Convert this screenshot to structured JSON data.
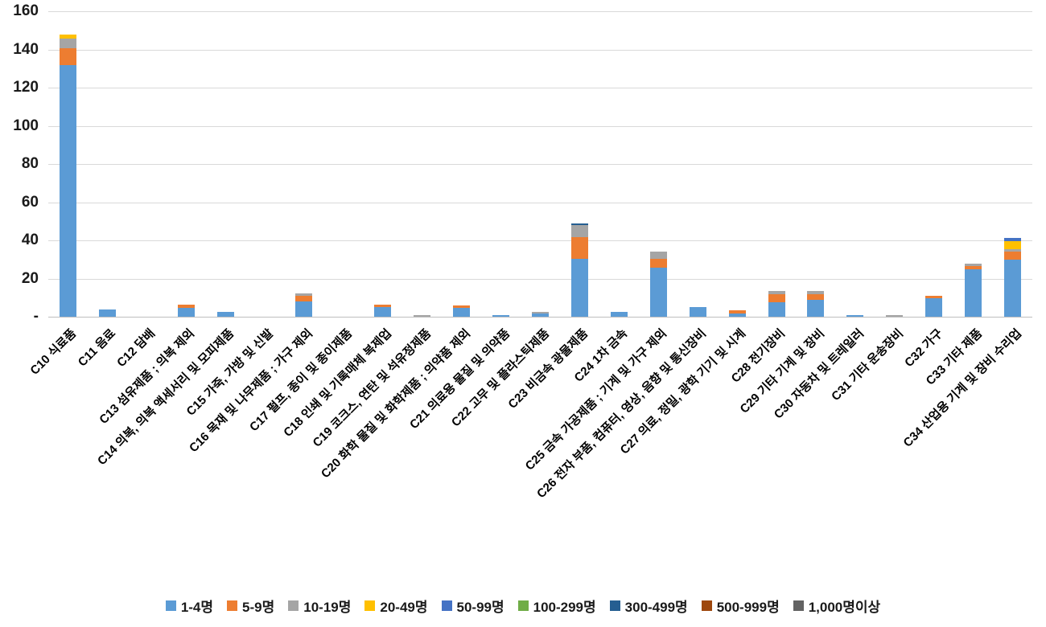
{
  "chart_data": {
    "type": "bar",
    "subtype": "stacked-vertical",
    "title": "",
    "xlabel": "",
    "ylabel": "",
    "grid": "horizontal-only",
    "legend_position": "bottom",
    "y_axis": {
      "min": 0,
      "max": 160,
      "step": 20,
      "tick_labels": [
        "160",
        "140",
        "120",
        "100",
        "80",
        "60",
        "40",
        "20",
        "-"
      ]
    },
    "categories": [
      "C10 식료품",
      "C11 음료",
      "C12 담배",
      "C13 섬유제품 ; 의복 제외",
      "C14 의복, 의복 액세서리 및 모피제품",
      "C15 가죽, 가방 및 신발",
      "C16 목재 및 나무제품 ; 가구 제외",
      "C17 펄프, 종이 및 종이제품",
      "C18 인쇄 및 기록매체 복제업",
      "C19 코크스, 연탄 및 석유정제품",
      "C20 화학 물질 및 화학제품 ; 의약품 제외",
      "C21 의료용 물질 및 의약품",
      "C22 고무 및 플라스틱제품",
      "C23 비금속 광물제품",
      "C24 1차 금속",
      "C25 금속 가공제품 ; 기계 및 가구 제외",
      "C26 전자 부품, 컴퓨터, 영상, 음향 및 통신장비",
      "C27 의료, 정밀, 광학 기기 및 시계",
      "C28 전기장비",
      "C29 기타 기계 및 장비",
      "C30 자동차 및 트레일러",
      "C31 기타 운송장비",
      "C32 가구",
      "C33 기타 제품",
      "C34 산업용 기계 및 장비 수리업"
    ],
    "series": [
      {
        "name": "1-4명",
        "color": "#5B9BD5",
        "values": [
          132,
          4,
          0,
          4.5,
          2.5,
          0,
          8,
          0,
          5,
          0,
          4.5,
          1,
          1.5,
          30.5,
          2.6,
          25.5,
          5.2,
          1.6,
          7.6,
          9,
          1,
          0,
          9.5,
          25,
          30
        ]
      },
      {
        "name": "5-9명",
        "color": "#ED7D31",
        "values": [
          8.5,
          0,
          0,
          2,
          0,
          0,
          3,
          0,
          1.5,
          0,
          1.3,
          0,
          0,
          11,
          0,
          4.8,
          0,
          1.8,
          4.2,
          3,
          0,
          0,
          1.6,
          1.5,
          4.2
        ]
      },
      {
        "name": "10-19명",
        "color": "#A5A5A5",
        "values": [
          5,
          0,
          0,
          0,
          0,
          0,
          1.3,
          0,
          0,
          1,
          0,
          0,
          1,
          6.3,
          0,
          3.7,
          0,
          0,
          1.8,
          1.5,
          0,
          1,
          0,
          1.5,
          1.2
        ]
      },
      {
        "name": "20-49명",
        "color": "#FFC000",
        "values": [
          2.5,
          0,
          0,
          0,
          0,
          0,
          0,
          0,
          0,
          0,
          0,
          0,
          0,
          0,
          0,
          0,
          0,
          0,
          0,
          0,
          0,
          0,
          0,
          0,
          4.2
        ]
      },
      {
        "name": "50-99명",
        "color": "#4472C4",
        "values": [
          0,
          0,
          0,
          0,
          0,
          0,
          0,
          0,
          0,
          0,
          0,
          0,
          0,
          0,
          0,
          0,
          0,
          0,
          0,
          0,
          0,
          0,
          0,
          0,
          1.7
        ]
      },
      {
        "name": "100-299명",
        "color": "#70AD47",
        "values": [
          0,
          0,
          0,
          0,
          0,
          0,
          0,
          0,
          0,
          0,
          0,
          0,
          0,
          0,
          0,
          0,
          0,
          0,
          0,
          0,
          0,
          0,
          0,
          0,
          0
        ]
      },
      {
        "name": "300-499명",
        "color": "#255E91",
        "values": [
          0,
          0,
          0,
          0,
          0,
          0,
          0,
          0,
          0,
          0,
          0,
          0,
          0,
          1,
          0,
          0,
          0,
          0,
          0,
          0,
          0,
          0,
          0,
          0,
          0
        ]
      },
      {
        "name": "500-999명",
        "color": "#9E480E",
        "values": [
          0,
          0,
          0,
          0,
          0,
          0,
          0,
          0,
          0,
          0,
          0,
          0,
          0,
          0,
          0,
          0,
          0,
          0,
          0,
          0,
          0,
          0,
          0,
          0,
          0
        ]
      },
      {
        "name": "1,000명이상",
        "color": "#636363",
        "values": [
          0,
          0,
          0,
          0,
          0,
          0,
          0,
          0,
          0,
          0,
          0,
          0,
          0,
          0,
          0,
          0,
          0,
          0,
          0,
          0,
          0,
          0,
          0,
          0,
          0
        ]
      }
    ]
  }
}
